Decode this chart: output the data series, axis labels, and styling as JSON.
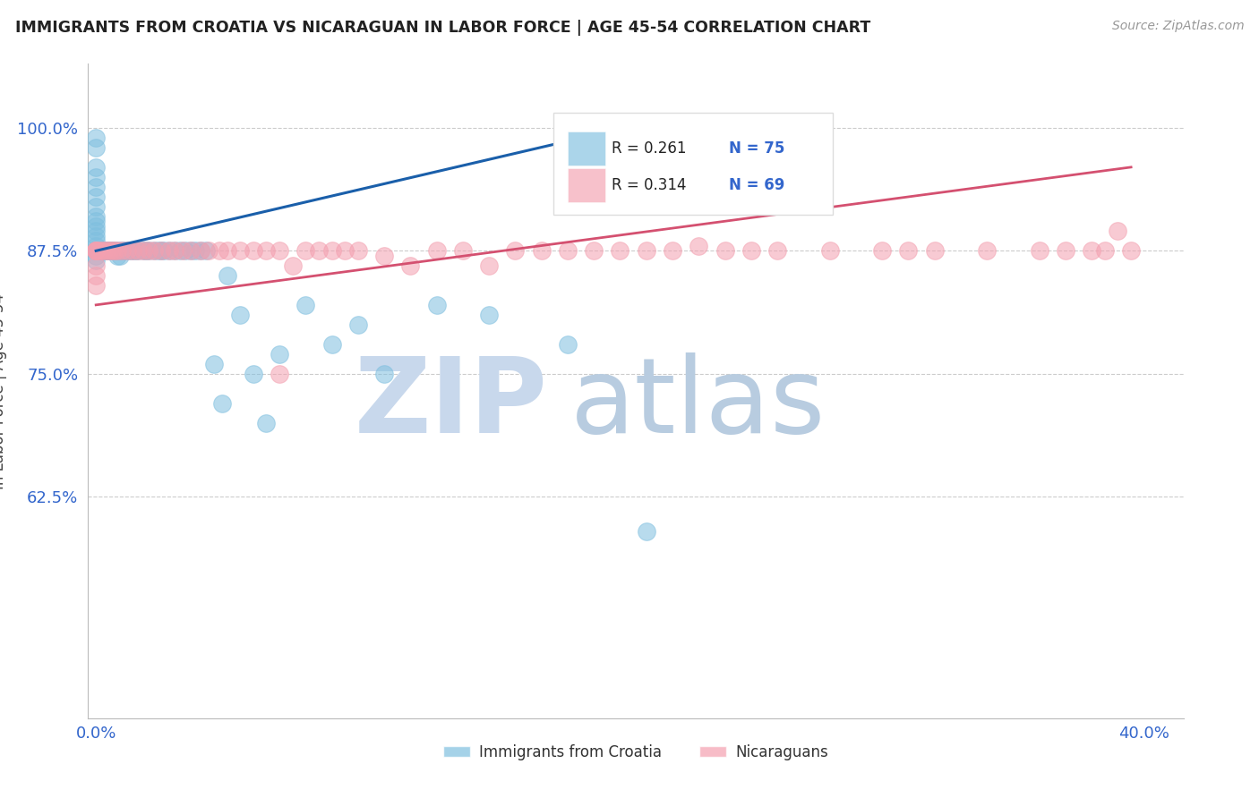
{
  "title": "IMMIGRANTS FROM CROATIA VS NICARAGUAN IN LABOR FORCE | AGE 45-54 CORRELATION CHART",
  "source": "Source: ZipAtlas.com",
  "ylabel": "In Labor Force | Age 45-54",
  "xlim": [
    -0.003,
    0.415
  ],
  "ylim": [
    0.4,
    1.065
  ],
  "xtick_vals": [
    0.0,
    0.4
  ],
  "xtick_labels": [
    "0.0%",
    "40.0%"
  ],
  "ytick_vals": [
    1.0,
    0.875,
    0.75,
    0.625
  ],
  "ytick_labels": [
    "100.0%",
    "87.5%",
    "75.0%",
    "62.5%"
  ],
  "croatia_R": 0.261,
  "croatia_N": 75,
  "nicaragua_R": 0.314,
  "nicaragua_N": 69,
  "croatia_color": "#7fbfdf",
  "nicaragua_color": "#f4a0b0",
  "trendline_croatia_color": "#1a5faa",
  "trendline_nicaragua_color": "#d45070",
  "title_color": "#222222",
  "axis_label_color": "#444444",
  "tick_color": "#3366cc",
  "watermark_zip_color": "#c8d8ec",
  "watermark_atlas_color": "#b8cce0",
  "blue_label_color": "#3366cc",
  "stat_text_color": "#222222",
  "croatia_scatter_x": [
    0.0,
    0.0,
    0.0,
    0.0,
    0.0,
    0.0,
    0.0,
    0.0,
    0.0,
    0.0,
    0.0,
    0.0,
    0.0,
    0.0,
    0.0,
    0.0,
    0.0,
    0.0,
    0.0,
    0.0,
    0.001,
    0.001,
    0.001,
    0.002,
    0.002,
    0.003,
    0.003,
    0.004,
    0.004,
    0.005,
    0.005,
    0.006,
    0.006,
    0.007,
    0.008,
    0.008,
    0.009,
    0.01,
    0.01,
    0.011,
    0.012,
    0.013,
    0.014,
    0.015,
    0.016,
    0.018,
    0.019,
    0.02,
    0.022,
    0.024,
    0.025,
    0.026,
    0.028,
    0.03,
    0.032,
    0.034,
    0.036,
    0.038,
    0.04,
    0.042,
    0.045,
    0.048,
    0.05,
    0.055,
    0.06,
    0.065,
    0.07,
    0.08,
    0.09,
    0.1,
    0.11,
    0.13,
    0.15,
    0.18,
    0.21
  ],
  "croatia_scatter_y": [
    0.875,
    0.99,
    0.98,
    0.96,
    0.95,
    0.94,
    0.93,
    0.92,
    0.91,
    0.905,
    0.9,
    0.895,
    0.89,
    0.885,
    0.88,
    0.875,
    0.875,
    0.875,
    0.87,
    0.865,
    0.875,
    0.875,
    0.875,
    0.875,
    0.875,
    0.875,
    0.875,
    0.875,
    0.875,
    0.875,
    0.875,
    0.875,
    0.875,
    0.875,
    0.875,
    0.87,
    0.87,
    0.875,
    0.875,
    0.875,
    0.875,
    0.875,
    0.875,
    0.875,
    0.875,
    0.875,
    0.875,
    0.875,
    0.875,
    0.875,
    0.875,
    0.875,
    0.875,
    0.875,
    0.875,
    0.875,
    0.875,
    0.875,
    0.875,
    0.875,
    0.76,
    0.72,
    0.85,
    0.81,
    0.75,
    0.7,
    0.77,
    0.82,
    0.78,
    0.8,
    0.75,
    0.82,
    0.81,
    0.78,
    0.59
  ],
  "nicaragua_scatter_x": [
    0.0,
    0.0,
    0.0,
    0.0,
    0.0,
    0.0,
    0.0,
    0.001,
    0.002,
    0.003,
    0.004,
    0.005,
    0.006,
    0.007,
    0.008,
    0.01,
    0.012,
    0.014,
    0.016,
    0.018,
    0.02,
    0.022,
    0.025,
    0.028,
    0.03,
    0.033,
    0.036,
    0.04,
    0.043,
    0.047,
    0.05,
    0.055,
    0.06,
    0.065,
    0.07,
    0.075,
    0.08,
    0.085,
    0.09,
    0.095,
    0.1,
    0.11,
    0.12,
    0.13,
    0.14,
    0.15,
    0.16,
    0.17,
    0.18,
    0.19,
    0.2,
    0.21,
    0.22,
    0.23,
    0.24,
    0.25,
    0.26,
    0.28,
    0.3,
    0.31,
    0.32,
    0.34,
    0.36,
    0.37,
    0.38,
    0.385,
    0.39,
    0.395,
    0.07
  ],
  "nicaragua_scatter_y": [
    0.875,
    0.875,
    0.875,
    0.875,
    0.86,
    0.85,
    0.84,
    0.875,
    0.875,
    0.875,
    0.875,
    0.875,
    0.875,
    0.875,
    0.875,
    0.875,
    0.875,
    0.875,
    0.875,
    0.875,
    0.875,
    0.875,
    0.875,
    0.875,
    0.875,
    0.875,
    0.875,
    0.875,
    0.875,
    0.875,
    0.875,
    0.875,
    0.875,
    0.875,
    0.875,
    0.86,
    0.875,
    0.875,
    0.875,
    0.875,
    0.875,
    0.87,
    0.86,
    0.875,
    0.875,
    0.86,
    0.875,
    0.875,
    0.875,
    0.875,
    0.875,
    0.875,
    0.875,
    0.88,
    0.875,
    0.875,
    0.875,
    0.875,
    0.875,
    0.875,
    0.875,
    0.875,
    0.875,
    0.875,
    0.875,
    0.875,
    0.895,
    0.875,
    0.75
  ],
  "cro_trend_x": [
    0.0,
    0.21
  ],
  "cro_trend_y": [
    0.875,
    1.005
  ],
  "nic_trend_x": [
    0.0,
    0.395
  ],
  "nic_trend_y": [
    0.82,
    0.96
  ]
}
